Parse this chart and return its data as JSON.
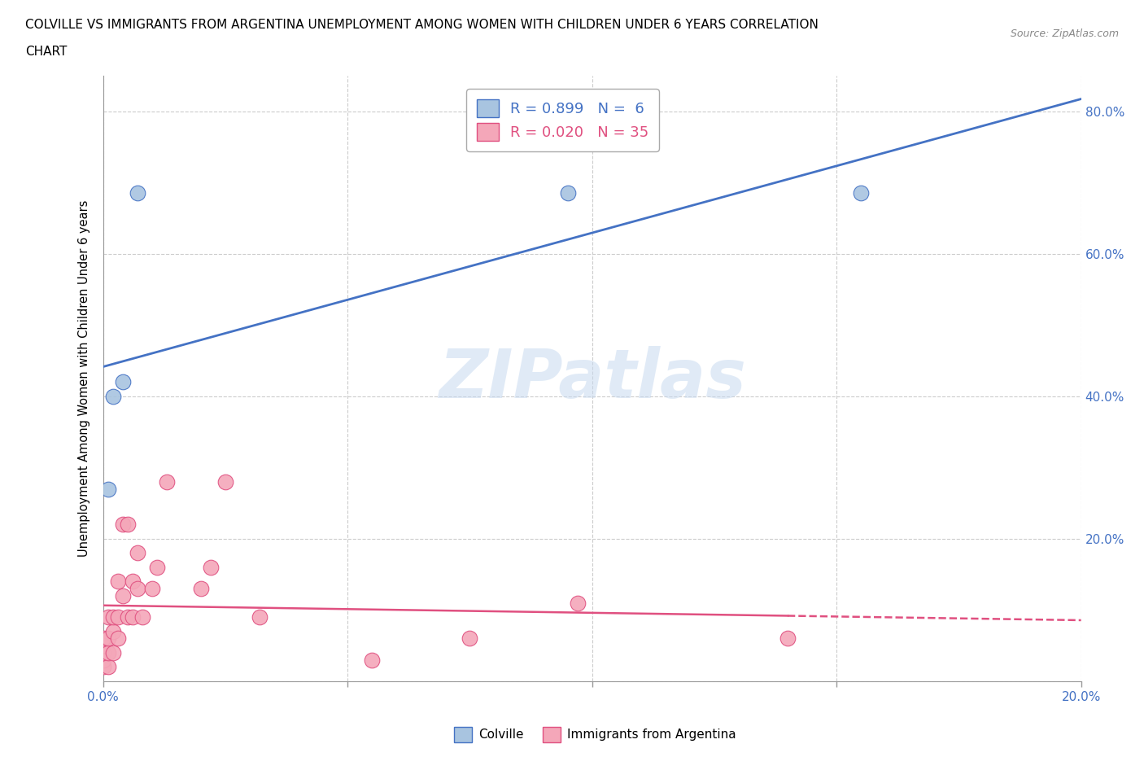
{
  "title_line1": "COLVILLE VS IMMIGRANTS FROM ARGENTINA UNEMPLOYMENT AMONG WOMEN WITH CHILDREN UNDER 6 YEARS CORRELATION",
  "title_line2": "CHART",
  "source": "Source: ZipAtlas.com",
  "ylabel": "Unemployment Among Women with Children Under 6 years",
  "xlabel_colville": "Colville",
  "xlabel_argentina": "Immigrants from Argentina",
  "colville_R": 0.899,
  "colville_N": 6,
  "argentina_R": 0.02,
  "argentina_N": 35,
  "colville_color": "#a8c4e0",
  "argentina_color": "#f4a7b9",
  "colville_line_color": "#4472c4",
  "argentina_line_color": "#e05080",
  "xmin": 0.0,
  "xmax": 0.2,
  "ymin": 0.0,
  "ymax": 0.85,
  "colville_x": [
    0.001,
    0.002,
    0.004,
    0.007,
    0.095,
    0.155
  ],
  "colville_y": [
    0.27,
    0.4,
    0.42,
    0.685,
    0.685,
    0.685
  ],
  "argentina_x": [
    0.0,
    0.0,
    0.0,
    0.0,
    0.0,
    0.001,
    0.001,
    0.001,
    0.001,
    0.002,
    0.002,
    0.002,
    0.003,
    0.003,
    0.003,
    0.004,
    0.004,
    0.005,
    0.005,
    0.006,
    0.006,
    0.007,
    0.007,
    0.008,
    0.01,
    0.011,
    0.013,
    0.02,
    0.022,
    0.025,
    0.032,
    0.055,
    0.075,
    0.097,
    0.14
  ],
  "argentina_y": [
    0.02,
    0.03,
    0.04,
    0.05,
    0.06,
    0.02,
    0.04,
    0.06,
    0.09,
    0.04,
    0.07,
    0.09,
    0.06,
    0.09,
    0.14,
    0.12,
    0.22,
    0.09,
    0.22,
    0.09,
    0.14,
    0.13,
    0.18,
    0.09,
    0.13,
    0.16,
    0.28,
    0.13,
    0.16,
    0.28,
    0.09,
    0.03,
    0.06,
    0.11,
    0.06
  ],
  "right_ytick_labels": [
    "80.0%",
    "60.0%",
    "40.0%",
    "20.0%"
  ],
  "right_ytick_values": [
    0.8,
    0.6,
    0.4,
    0.2
  ],
  "xtick_values": [
    0.0,
    0.05,
    0.1,
    0.15,
    0.2
  ],
  "xtick_labels": [
    "0.0%",
    "",
    "",
    "",
    "20.0%"
  ],
  "ytick_values": [
    0.0,
    0.2,
    0.4,
    0.6,
    0.8
  ],
  "grid_color": "#cccccc",
  "background_color": "#ffffff"
}
